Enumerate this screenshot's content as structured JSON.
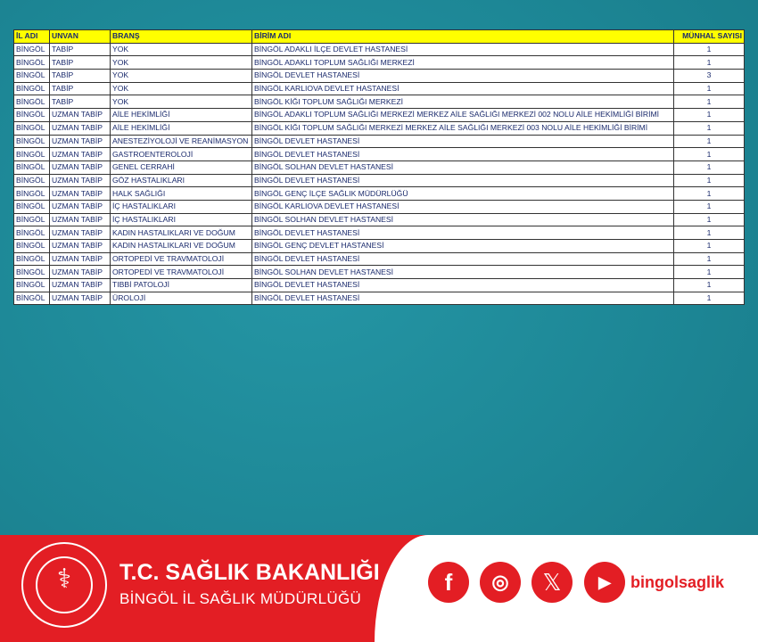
{
  "table": {
    "headers": [
      "İL ADI",
      "UNVAN",
      "BRANŞ",
      "BİRİM ADI",
      "MÜNHAL SAYISI"
    ],
    "rows": [
      [
        "BİNGÖL",
        "TABİP",
        "YOK",
        "BİNGÖL ADAKLI İLÇE DEVLET HASTANESİ",
        "1"
      ],
      [
        "BİNGÖL",
        "TABİP",
        "YOK",
        "BİNGÖL ADAKLI TOPLUM SAĞLIĞI MERKEZİ",
        "1"
      ],
      [
        "BİNGÖL",
        "TABİP",
        "YOK",
        "BİNGÖL DEVLET HASTANESİ",
        "3"
      ],
      [
        "BİNGÖL",
        "TABİP",
        "YOK",
        "BİNGÖL KARLIOVA DEVLET HASTANESİ",
        "1"
      ],
      [
        "BİNGÖL",
        "TABİP",
        "YOK",
        "BİNGÖL KİĞI TOPLUM SAĞLIĞI MERKEZİ",
        "1"
      ],
      [
        "BİNGÖL",
        "UZMAN TABİP",
        "AİLE HEKİMLİĞİ",
        "BİNGÖL ADAKLI TOPLUM SAĞLIĞI MERKEZİ MERKEZ AİLE SAĞLIĞI MERKEZİ 002 NOLU AİLE HEKİMLİĞİ BİRİMİ",
        "1"
      ],
      [
        "BİNGÖL",
        "UZMAN TABİP",
        "AİLE HEKİMLİĞİ",
        "BİNGÖL KİĞI TOPLUM SAĞLIĞI MERKEZİ MERKEZ AİLE SAĞLIĞI MERKEZİ 003 NOLU AİLE HEKİMLİĞİ BİRİMİ",
        "1"
      ],
      [
        "BİNGÖL",
        "UZMAN TABİP",
        "ANESTEZİYOLOJİ VE REANİMASYON",
        "BİNGÖL DEVLET HASTANESİ",
        "1"
      ],
      [
        "BİNGÖL",
        "UZMAN TABİP",
        "GASTROENTEROLOJİ",
        "BİNGÖL DEVLET HASTANESİ",
        "1"
      ],
      [
        "BİNGÖL",
        "UZMAN TABİP",
        "GENEL CERRAHİ",
        "BİNGÖL SOLHAN DEVLET HASTANESİ",
        "1"
      ],
      [
        "BİNGÖL",
        "UZMAN TABİP",
        "GÖZ HASTALIKLARI",
        "BİNGÖL DEVLET HASTANESİ",
        "1"
      ],
      [
        "BİNGÖL",
        "UZMAN TABİP",
        "HALK SAĞLIĞI",
        "BİNGÖL GENÇ İLÇE SAĞLIK MÜDÜRLÜĞÜ",
        "1"
      ],
      [
        "BİNGÖL",
        "UZMAN TABİP",
        "İÇ HASTALIKLARI",
        "BİNGÖL KARLIOVA DEVLET HASTANESİ",
        "1"
      ],
      [
        "BİNGÖL",
        "UZMAN TABİP",
        "İÇ HASTALIKLARI",
        "BİNGÖL SOLHAN DEVLET HASTANESİ",
        "1"
      ],
      [
        "BİNGÖL",
        "UZMAN TABİP",
        "KADIN HASTALIKLARI VE DOĞUM",
        "BİNGÖL DEVLET HASTANESİ",
        "1"
      ],
      [
        "BİNGÖL",
        "UZMAN TABİP",
        "KADIN HASTALIKLARI VE DOĞUM",
        "BİNGÖL GENÇ DEVLET HASTANESİ",
        "1"
      ],
      [
        "BİNGÖL",
        "UZMAN TABİP",
        "ORTOPEDİ VE TRAVMATOLOJİ",
        "BİNGÖL DEVLET HASTANESİ",
        "1"
      ],
      [
        "BİNGÖL",
        "UZMAN TABİP",
        "ORTOPEDİ VE TRAVMATOLOJİ",
        "BİNGÖL SOLHAN DEVLET HASTANESİ",
        "1"
      ],
      [
        "BİNGÖL",
        "UZMAN TABİP",
        "TIBBİ PATOLOJİ",
        "BİNGÖL DEVLET HASTANESİ",
        "1"
      ],
      [
        "BİNGÖL",
        "UZMAN TABİP",
        "ÜROLOJİ",
        "BİNGÖL DEVLET HASTANESİ",
        "1"
      ]
    ]
  },
  "footer": {
    "title": "T.C. SAĞLIK BAKANLIĞI",
    "subtitle": "BİNGÖL İL SAĞLIK MÜDÜRLÜĞÜ",
    "social_icons": [
      "facebook-icon",
      "instagram-icon",
      "x-icon",
      "youtube-icon"
    ],
    "handle": "bingolsaglik",
    "brand_color": "#e31e24",
    "background_color": "#1f8b9b"
  }
}
